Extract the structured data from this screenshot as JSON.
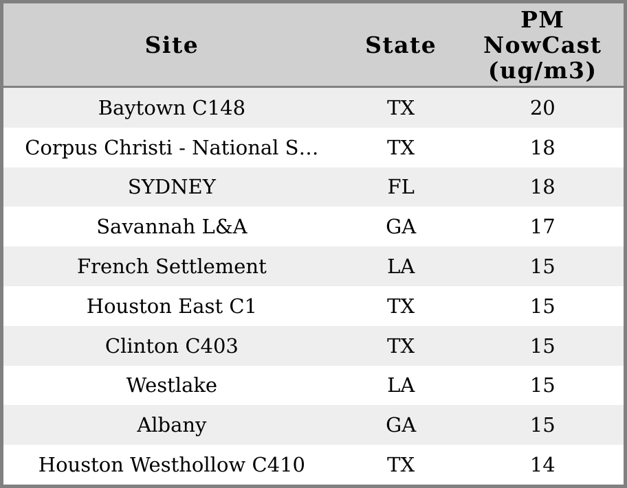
{
  "table": {
    "columns": [
      {
        "label": "Site"
      },
      {
        "label": "State"
      },
      {
        "label": "PM\nNowCast\n(ug/m3)"
      }
    ],
    "rows": [
      {
        "site": "Baytown C148",
        "state": "TX",
        "pm_nowcast": "20"
      },
      {
        "site": "Corpus Christi - National S…",
        "state": "TX",
        "pm_nowcast": "18"
      },
      {
        "site": "SYDNEY",
        "state": "FL",
        "pm_nowcast": "18"
      },
      {
        "site": "Savannah L&A",
        "state": "GA",
        "pm_nowcast": "17"
      },
      {
        "site": "French Settlement",
        "state": "LA",
        "pm_nowcast": "15"
      },
      {
        "site": "Houston East C1",
        "state": "TX",
        "pm_nowcast": "15"
      },
      {
        "site": "Clinton C403",
        "state": "TX",
        "pm_nowcast": "15"
      },
      {
        "site": "Westlake",
        "state": "LA",
        "pm_nowcast": "15"
      },
      {
        "site": "Albany",
        "state": "GA",
        "pm_nowcast": "15"
      },
      {
        "site": "Houston Westhollow C410",
        "state": "TX",
        "pm_nowcast": "14"
      }
    ]
  },
  "colors": {
    "border": "#808080",
    "header_bg": "#d0d0d0",
    "row_alt_bg": "#eeeeee",
    "row_bg": "#ffffff",
    "text": "#000000"
  },
  "chart_data": {
    "type": "table",
    "title": "",
    "columns": [
      "Site",
      "State",
      "PM NowCast (ug/m3)"
    ],
    "rows": [
      [
        "Baytown C148",
        "TX",
        20
      ],
      [
        "Corpus Christi - National S…",
        "TX",
        18
      ],
      [
        "SYDNEY",
        "FL",
        18
      ],
      [
        "Savannah L&A",
        "GA",
        17
      ],
      [
        "French Settlement",
        "LA",
        15
      ],
      [
        "Houston East C1",
        "TX",
        15
      ],
      [
        "Clinton C403",
        "TX",
        15
      ],
      [
        "Westlake",
        "LA",
        15
      ],
      [
        "Albany",
        "GA",
        15
      ],
      [
        "Houston Westhollow C410",
        "TX",
        14
      ]
    ],
    "layout_hints": {
      "header_fill": "#d0d0d0",
      "alternating_row_fills": [
        "#eeeeee",
        "#ffffff"
      ],
      "text_align": "center",
      "grid": false
    }
  }
}
